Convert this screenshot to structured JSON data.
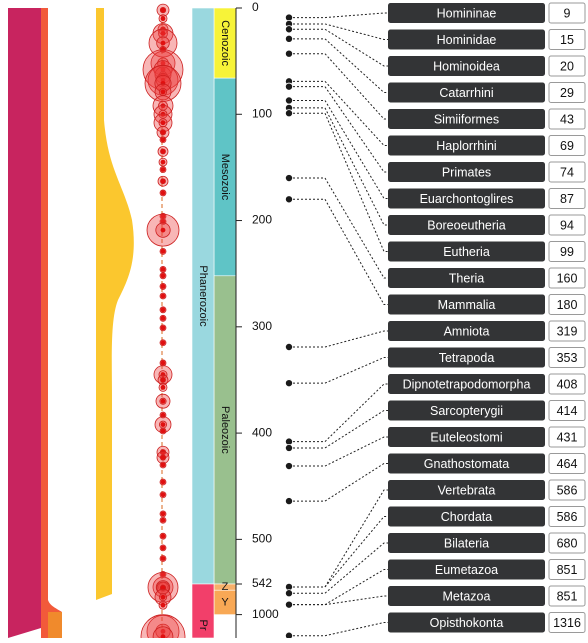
{
  "chart_data": {
    "type": "timeline",
    "time_axis": {
      "ticks": [
        0,
        100,
        200,
        300,
        400,
        500,
        542,
        1000
      ],
      "ylim": [
        0,
        1350
      ],
      "break_at": 542
    },
    "periods": [
      {
        "name": "Cenozoic",
        "start": 0,
        "end": 66,
        "level": "era",
        "color": "#f7f338"
      },
      {
        "name": "Mesozoic",
        "start": 66,
        "end": 252,
        "level": "era",
        "color": "#5fc4c6"
      },
      {
        "name": "Paleozoic",
        "start": 252,
        "end": 542,
        "level": "era",
        "color": "#99c08e"
      },
      {
        "name": "Phanerozoic",
        "start": 0,
        "end": 542,
        "level": "eon",
        "color": "#9ad8df"
      },
      {
        "name": "Z",
        "start": 542,
        "end": 635,
        "level": "era",
        "color": "#f7b06a"
      },
      {
        "name": "Y",
        "start": 635,
        "end": 1000,
        "level": "era",
        "color": "#f8a855"
      },
      {
        "name": "Pr",
        "start": 542,
        "end": 2500,
        "level": "eon",
        "color": "#f23f6a"
      }
    ],
    "clades": [
      {
        "name": "Homininae",
        "age": 9
      },
      {
        "name": "Hominidae",
        "age": 15
      },
      {
        "name": "Hominoidea",
        "age": 20
      },
      {
        "name": "Catarrhini",
        "age": 29
      },
      {
        "name": "Simiiformes",
        "age": 43
      },
      {
        "name": "Haplorrhini",
        "age": 69
      },
      {
        "name": "Primates",
        "age": 74
      },
      {
        "name": "Euarchontoglires",
        "age": 87
      },
      {
        "name": "Boreoeutheria",
        "age": 94
      },
      {
        "name": "Eutheria",
        "age": 99
      },
      {
        "name": "Theria",
        "age": 160
      },
      {
        "name": "Mammalia",
        "age": 180
      },
      {
        "name": "Amniota",
        "age": 319
      },
      {
        "name": "Tetrapoda",
        "age": 353
      },
      {
        "name": "Dipnotetrapodomorpha",
        "age": 408
      },
      {
        "name": "Sarcopterygii",
        "age": 414
      },
      {
        "name": "Euteleostomi",
        "age": 431
      },
      {
        "name": "Gnathostomata",
        "age": 464
      },
      {
        "name": "Vertebrata",
        "age": 586
      },
      {
        "name": "Chordata",
        "age": 586
      },
      {
        "name": "Bilateria",
        "age": 680
      },
      {
        "name": "Eumetazoa",
        "age": 851
      },
      {
        "name": "Metazoa",
        "age": 851
      },
      {
        "name": "Opisthokonta",
        "age": 1316
      }
    ],
    "events": [
      {
        "age": 2,
        "size": 6
      },
      {
        "age": 10,
        "size": 4
      },
      {
        "age": 20,
        "size": 5
      },
      {
        "age": 24,
        "size": 10
      },
      {
        "age": 33,
        "size": 14
      },
      {
        "age": 39,
        "size": 3
      },
      {
        "age": 52,
        "size": 12
      },
      {
        "age": 58,
        "size": 20
      },
      {
        "age": 63,
        "size": 8
      },
      {
        "age": 68,
        "size": 15
      },
      {
        "age": 71,
        "size": 18
      },
      {
        "age": 79,
        "size": 8
      },
      {
        "age": 92,
        "size": 10
      },
      {
        "age": 100,
        "size": 9
      },
      {
        "age": 108,
        "size": 9
      },
      {
        "age": 117,
        "size": 6
      },
      {
        "age": 124,
        "size": 3
      },
      {
        "age": 135,
        "size": 5
      },
      {
        "age": 145,
        "size": 4
      },
      {
        "age": 152,
        "size": 3
      },
      {
        "age": 163,
        "size": 5
      },
      {
        "age": 174,
        "size": 3
      },
      {
        "age": 196,
        "size": 3
      },
      {
        "age": 201,
        "size": 3
      },
      {
        "age": 209,
        "size": 16
      },
      {
        "age": 229,
        "size": 3
      },
      {
        "age": 246,
        "size": 3
      },
      {
        "age": 252,
        "size": 3
      },
      {
        "age": 262,
        "size": 3
      },
      {
        "age": 271,
        "size": 3
      },
      {
        "age": 284,
        "size": 3
      },
      {
        "age": 292,
        "size": 3
      },
      {
        "age": 301,
        "size": 3
      },
      {
        "age": 315,
        "size": 3
      },
      {
        "age": 334,
        "size": 3
      },
      {
        "age": 345,
        "size": 9
      },
      {
        "age": 350,
        "size": 5
      },
      {
        "age": 357,
        "size": 4
      },
      {
        "age": 370,
        "size": 7
      },
      {
        "age": 383,
        "size": 3
      },
      {
        "age": 392,
        "size": 8
      },
      {
        "age": 398,
        "size": 3
      },
      {
        "age": 418,
        "size": 6
      },
      {
        "age": 423,
        "size": 6
      },
      {
        "age": 430,
        "size": 3
      },
      {
        "age": 446,
        "size": 3
      },
      {
        "age": 458,
        "size": 3
      },
      {
        "age": 476,
        "size": 3
      },
      {
        "age": 482,
        "size": 3
      },
      {
        "age": 497,
        "size": 3
      },
      {
        "age": 508,
        "size": 3
      },
      {
        "age": 518,
        "size": 3
      },
      {
        "age": 533,
        "size": 3
      },
      {
        "age": 588,
        "size": 10
      },
      {
        "age": 592,
        "size": 15
      },
      {
        "age": 600,
        "size": 6
      },
      {
        "age": 740,
        "size": 8
      },
      {
        "age": 860,
        "size": 4
      },
      {
        "age": 1250,
        "size": 16
      },
      {
        "age": 1330,
        "size": 22
      }
    ],
    "curves": [
      {
        "color": "#c8245f"
      },
      {
        "color": "#f25a3a"
      },
      {
        "color": "#fbc72e"
      }
    ]
  }
}
